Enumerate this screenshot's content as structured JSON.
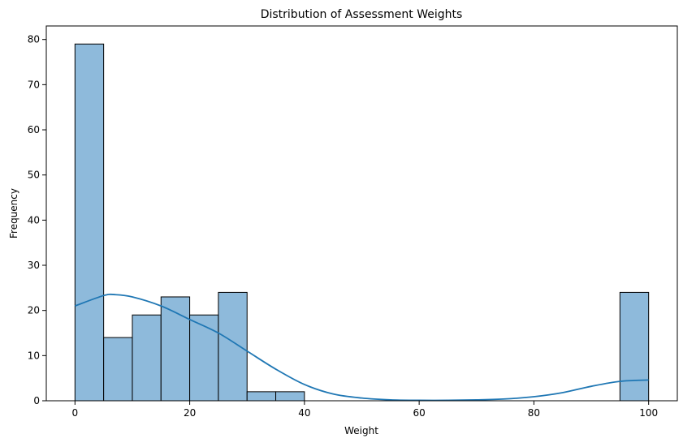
{
  "chart_data": {
    "type": "bar",
    "title": "Distribution of Assessment Weights",
    "xlabel": "Weight",
    "ylabel": "Frequency",
    "xlim": [
      -5,
      105
    ],
    "ylim": [
      0,
      83
    ],
    "xticks": [
      0,
      20,
      40,
      60,
      80,
      100
    ],
    "yticks": [
      0,
      10,
      20,
      30,
      40,
      50,
      60,
      70,
      80
    ],
    "bin_width": 5,
    "bins": [
      {
        "start": 0,
        "end": 5,
        "count": 79
      },
      {
        "start": 5,
        "end": 10,
        "count": 14
      },
      {
        "start": 10,
        "end": 15,
        "count": 19
      },
      {
        "start": 15,
        "end": 20,
        "count": 23
      },
      {
        "start": 20,
        "end": 25,
        "count": 19
      },
      {
        "start": 25,
        "end": 30,
        "count": 24
      },
      {
        "start": 30,
        "end": 35,
        "count": 2
      },
      {
        "start": 35,
        "end": 40,
        "count": 2
      },
      {
        "start": 40,
        "end": 45,
        "count": 0
      },
      {
        "start": 45,
        "end": 50,
        "count": 0
      },
      {
        "start": 50,
        "end": 55,
        "count": 0
      },
      {
        "start": 55,
        "end": 60,
        "count": 0
      },
      {
        "start": 60,
        "end": 65,
        "count": 0
      },
      {
        "start": 65,
        "end": 70,
        "count": 0
      },
      {
        "start": 70,
        "end": 75,
        "count": 0
      },
      {
        "start": 75,
        "end": 80,
        "count": 0
      },
      {
        "start": 80,
        "end": 85,
        "count": 0
      },
      {
        "start": 85,
        "end": 90,
        "count": 0
      },
      {
        "start": 90,
        "end": 95,
        "count": 0
      },
      {
        "start": 95,
        "end": 100,
        "count": 24
      }
    ],
    "kde": {
      "x": [
        0,
        5,
        7,
        10,
        15,
        20,
        25,
        30,
        35,
        40,
        45,
        50,
        55,
        60,
        65,
        70,
        75,
        80,
        85,
        90,
        95,
        100
      ],
      "y": [
        21,
        23.3,
        23.5,
        23,
        21,
        18,
        15,
        11,
        7,
        3.6,
        1.5,
        0.6,
        0.2,
        0.1,
        0.1,
        0.2,
        0.4,
        0.9,
        1.8,
        3.2,
        4.3,
        4.6
      ]
    },
    "grid": false,
    "legend": "none",
    "colors": {
      "bar_fill": "#8ebadb",
      "bar_edge": "#000000",
      "kde_line": "#1f77b4"
    }
  }
}
